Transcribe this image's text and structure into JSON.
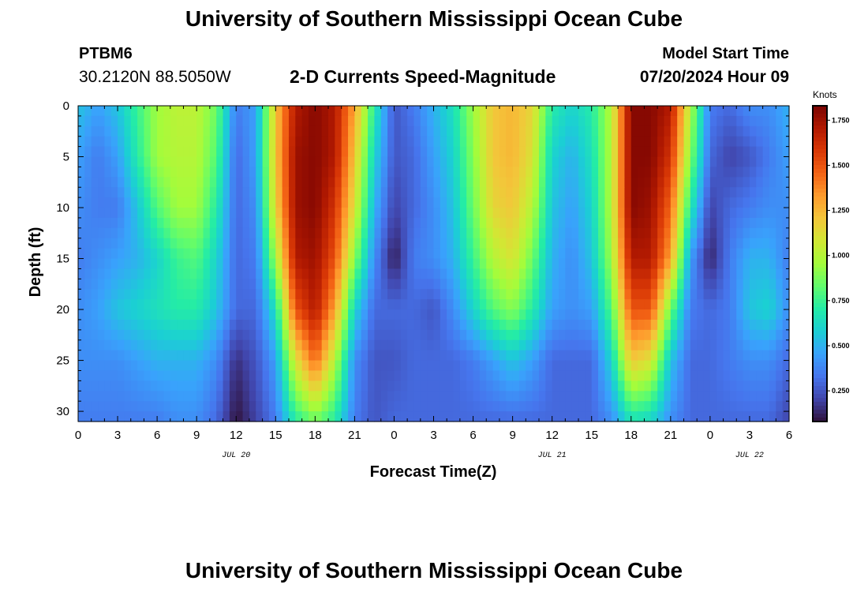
{
  "header": {
    "title": "University of Southern Mississippi Ocean Cube",
    "station": "PTBM6",
    "coordinates": "30.2120N  88.5050W",
    "subtitle": "2-D Currents Speed-Magnitude",
    "model_start_label": "Model Start Time",
    "model_start_value": "07/20/2024 Hour 09"
  },
  "footer": {
    "title": "University of Southern Mississippi Ocean Cube"
  },
  "colors": {
    "background": "#ffffff",
    "axis": "#000000"
  },
  "chart_data": {
    "type": "heatmap",
    "xlabel": "Forecast Time(Z)",
    "ylabel": "Depth (ft)",
    "x_range_hours": [
      0,
      54
    ],
    "y_range_ft": [
      0,
      31
    ],
    "y_inverted": true,
    "x_ticks": [
      {
        "hour": 0,
        "label": "0"
      },
      {
        "hour": 3,
        "label": "3"
      },
      {
        "hour": 6,
        "label": "6"
      },
      {
        "hour": 9,
        "label": "9"
      },
      {
        "hour": 12,
        "label": "12"
      },
      {
        "hour": 15,
        "label": "15"
      },
      {
        "hour": 18,
        "label": "18"
      },
      {
        "hour": 21,
        "label": "21"
      },
      {
        "hour": 24,
        "label": "0"
      },
      {
        "hour": 27,
        "label": "3"
      },
      {
        "hour": 30,
        "label": "6"
      },
      {
        "hour": 33,
        "label": "9"
      },
      {
        "hour": 36,
        "label": "12"
      },
      {
        "hour": 39,
        "label": "15"
      },
      {
        "hour": 42,
        "label": "18"
      },
      {
        "hour": 45,
        "label": "21"
      },
      {
        "hour": 48,
        "label": "0"
      },
      {
        "hour": 51,
        "label": "3"
      },
      {
        "hour": 54,
        "label": "6"
      }
    ],
    "date_labels": [
      {
        "hour": 12,
        "label": "JUL 20"
      },
      {
        "hour": 36,
        "label": "JUL 21"
      },
      {
        "hour": 51,
        "label": "JUL 22"
      }
    ],
    "y_ticks": [
      {
        "depth": 0,
        "label": "0"
      },
      {
        "depth": 5,
        "label": "5"
      },
      {
        "depth": 10,
        "label": "10"
      },
      {
        "depth": 15,
        "label": "15"
      },
      {
        "depth": 20,
        "label": "20"
      },
      {
        "depth": 25,
        "label": "25"
      },
      {
        "depth": 30,
        "label": "30"
      }
    ],
    "colorbar": {
      "unit": "Knots",
      "range": [
        0.08,
        1.83
      ],
      "ticks": [
        {
          "value": 0.25,
          "label": "0.250"
        },
        {
          "value": 0.5,
          "label": "0.500"
        },
        {
          "value": 0.75,
          "label": "0.750"
        },
        {
          "value": 1.0,
          "label": "1.000"
        },
        {
          "value": 1.25,
          "label": "1.250"
        },
        {
          "value": 1.5,
          "label": "1.500"
        },
        {
          "value": 1.75,
          "label": "1.750"
        }
      ],
      "colormap": [
        "#30123b",
        "#4145ab",
        "#4675ed",
        "#39a2fc",
        "#1bcfd4",
        "#24eca6",
        "#61fc6c",
        "#a4fc3b",
        "#d1e834",
        "#f3c63a",
        "#fe9b2d",
        "#f36315",
        "#d93806",
        "#b11901",
        "#7a0402"
      ]
    },
    "speed_grid_knots": {
      "hours": [
        0,
        1.5,
        3,
        4.5,
        6,
        7.5,
        9,
        10.5,
        12,
        13.5,
        15,
        16.5,
        18,
        19.5,
        21,
        22.5,
        24,
        25.5,
        27,
        28.5,
        30,
        31.5,
        33,
        34.5,
        36,
        37.5,
        39,
        40.5,
        42,
        43.5,
        45,
        46.5,
        48,
        49.5,
        51,
        52.5,
        54
      ],
      "depths": [
        0,
        5,
        10,
        15,
        20,
        25,
        31
      ],
      "rows": [
        [
          0.55,
          0.45,
          0.55,
          0.75,
          0.95,
          1.02,
          1.02,
          0.85,
          0.35,
          0.45,
          1.2,
          1.7,
          1.8,
          1.7,
          1.3,
          0.7,
          0.25,
          0.35,
          0.5,
          0.65,
          0.95,
          1.2,
          1.25,
          1.15,
          0.7,
          0.6,
          0.7,
          1.0,
          1.8,
          1.8,
          1.7,
          1.0,
          0.35,
          0.3,
          0.4,
          0.4,
          0.5
        ],
        [
          0.45,
          0.35,
          0.45,
          0.7,
          0.95,
          1.0,
          1.0,
          0.8,
          0.3,
          0.45,
          1.2,
          1.75,
          1.8,
          1.7,
          1.2,
          0.6,
          0.25,
          0.3,
          0.45,
          0.6,
          0.9,
          1.2,
          1.25,
          1.1,
          0.6,
          0.5,
          0.65,
          1.0,
          1.8,
          1.8,
          1.6,
          0.9,
          0.3,
          0.2,
          0.25,
          0.35,
          0.45
        ],
        [
          0.4,
          0.35,
          0.35,
          0.55,
          0.8,
          0.95,
          0.95,
          0.7,
          0.3,
          0.4,
          1.15,
          1.75,
          1.8,
          1.6,
          1.1,
          0.5,
          0.2,
          0.3,
          0.4,
          0.55,
          0.85,
          1.15,
          1.2,
          1.0,
          0.55,
          0.45,
          0.6,
          1.0,
          1.8,
          1.75,
          1.45,
          0.7,
          0.2,
          0.3,
          0.35,
          0.4,
          0.4
        ],
        [
          0.35,
          0.4,
          0.45,
          0.5,
          0.6,
          0.75,
          0.8,
          0.6,
          0.3,
          0.35,
          0.95,
          1.7,
          1.75,
          1.5,
          0.9,
          0.4,
          0.1,
          0.35,
          0.4,
          0.5,
          0.75,
          1.0,
          1.1,
          0.85,
          0.5,
          0.4,
          0.55,
          0.95,
          1.7,
          1.7,
          1.3,
          0.45,
          0.12,
          0.35,
          0.5,
          0.5,
          0.35
        ],
        [
          0.4,
          0.45,
          0.55,
          0.6,
          0.65,
          0.7,
          0.7,
          0.55,
          0.3,
          0.3,
          0.65,
          1.5,
          1.7,
          1.3,
          0.6,
          0.3,
          0.3,
          0.3,
          0.25,
          0.4,
          0.6,
          0.8,
          0.9,
          0.7,
          0.45,
          0.4,
          0.45,
          0.8,
          1.5,
          1.5,
          0.85,
          0.35,
          0.3,
          0.35,
          0.55,
          0.6,
          0.4
        ],
        [
          0.4,
          0.4,
          0.4,
          0.45,
          0.5,
          0.5,
          0.5,
          0.4,
          0.15,
          0.25,
          0.45,
          1.1,
          1.45,
          1.0,
          0.4,
          0.25,
          0.25,
          0.3,
          0.3,
          0.3,
          0.35,
          0.45,
          0.55,
          0.45,
          0.3,
          0.3,
          0.3,
          0.6,
          1.2,
          1.1,
          0.55,
          0.3,
          0.3,
          0.35,
          0.4,
          0.4,
          0.3
        ],
        [
          0.35,
          0.35,
          0.35,
          0.35,
          0.35,
          0.4,
          0.4,
          0.3,
          0.08,
          0.2,
          0.35,
          0.7,
          0.85,
          0.7,
          0.35,
          0.25,
          0.3,
          0.3,
          0.3,
          0.3,
          0.3,
          0.3,
          0.3,
          0.3,
          0.3,
          0.3,
          0.3,
          0.4,
          0.65,
          0.6,
          0.4,
          0.3,
          0.3,
          0.3,
          0.3,
          0.3,
          0.2
        ]
      ]
    }
  }
}
